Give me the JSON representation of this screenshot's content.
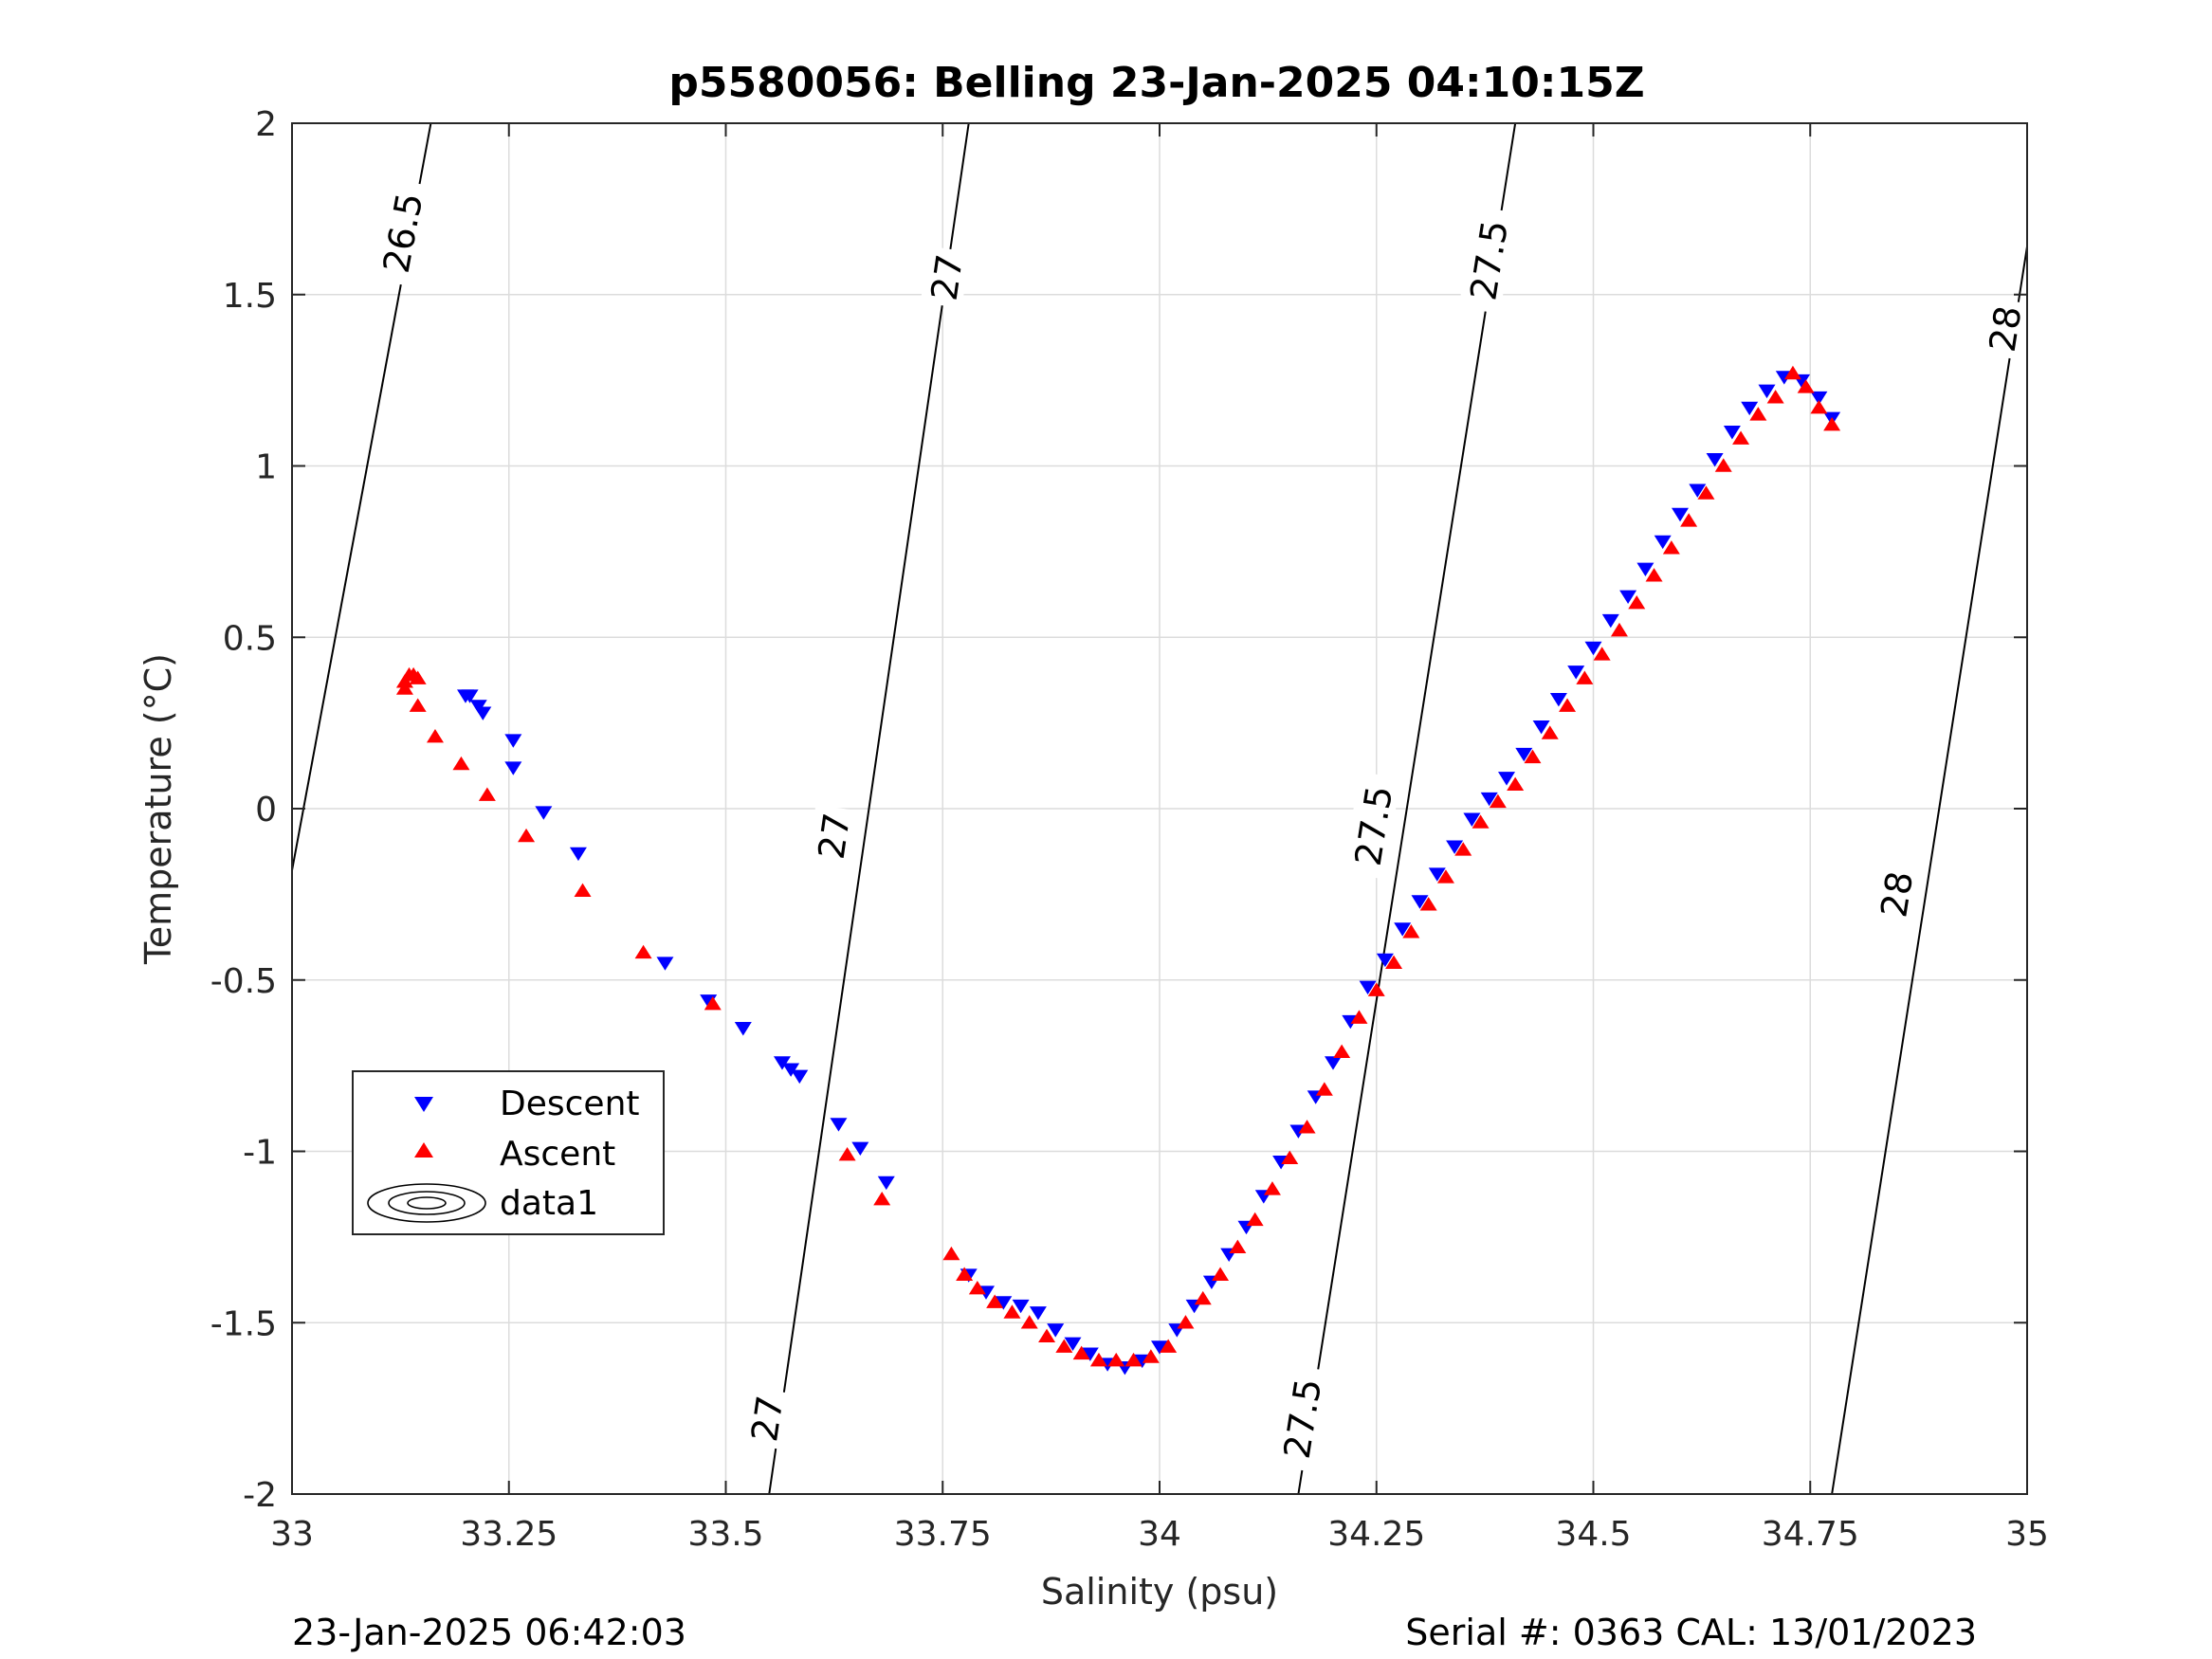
{
  "chart_data": {
    "type": "scatter",
    "title": "p5580056: Belling 23-Jan-2025 04:10:15Z",
    "xlabel": "Salinity (psu)",
    "ylabel": "Temperature (°C)",
    "xlim": [
      33,
      35
    ],
    "ylim": [
      -2,
      2
    ],
    "x_ticks": [
      "33",
      "33.25",
      "33.5",
      "33.75",
      "34",
      "34.25",
      "34.5",
      "34.75",
      "35"
    ],
    "y_ticks": [
      "2",
      "1.5",
      "1",
      "0.5",
      "0",
      "-0.5",
      "-1",
      "-1.5",
      "-2"
    ],
    "grid": true,
    "legend_position": "lower-left",
    "legend": [
      "Descent",
      "Ascent",
      "data1"
    ],
    "series": [
      {
        "name": "Descent",
        "marker": "triangle-down",
        "color": "#0000ff",
        "points": [
          [
            33.2,
            0.33
          ],
          [
            33.205,
            0.33
          ],
          [
            33.215,
            0.3
          ],
          [
            33.22,
            0.28
          ],
          [
            33.255,
            0.2
          ],
          [
            33.255,
            0.12
          ],
          [
            33.29,
            -0.01
          ],
          [
            33.33,
            -0.13
          ],
          [
            33.43,
            -0.45
          ],
          [
            33.48,
            -0.56
          ],
          [
            33.52,
            -0.64
          ],
          [
            33.565,
            -0.74
          ],
          [
            33.575,
            -0.76
          ],
          [
            33.585,
            -0.78
          ],
          [
            33.63,
            -0.92
          ],
          [
            33.655,
            -0.99
          ],
          [
            33.685,
            -1.09
          ],
          [
            33.78,
            -1.36
          ],
          [
            33.8,
            -1.41
          ],
          [
            33.82,
            -1.44
          ],
          [
            33.84,
            -1.45
          ],
          [
            33.86,
            -1.47
          ],
          [
            33.88,
            -1.52
          ],
          [
            33.9,
            -1.56
          ],
          [
            33.92,
            -1.59
          ],
          [
            33.94,
            -1.62
          ],
          [
            33.96,
            -1.63
          ],
          [
            33.98,
            -1.61
          ],
          [
            34.0,
            -1.57
          ],
          [
            34.02,
            -1.52
          ],
          [
            34.04,
            -1.45
          ],
          [
            34.06,
            -1.38
          ],
          [
            34.08,
            -1.3
          ],
          [
            34.1,
            -1.22
          ],
          [
            34.12,
            -1.13
          ],
          [
            34.14,
            -1.03
          ],
          [
            34.16,
            -0.94
          ],
          [
            34.18,
            -0.84
          ],
          [
            34.2,
            -0.74
          ],
          [
            34.22,
            -0.62
          ],
          [
            34.24,
            -0.52
          ],
          [
            34.26,
            -0.44
          ],
          [
            34.28,
            -0.35
          ],
          [
            34.3,
            -0.27
          ],
          [
            34.32,
            -0.19
          ],
          [
            34.34,
            -0.11
          ],
          [
            34.36,
            -0.03
          ],
          [
            34.38,
            0.03
          ],
          [
            34.4,
            0.09
          ],
          [
            34.42,
            0.16
          ],
          [
            34.44,
            0.24
          ],
          [
            34.46,
            0.32
          ],
          [
            34.48,
            0.4
          ],
          [
            34.5,
            0.47
          ],
          [
            34.52,
            0.55
          ],
          [
            34.54,
            0.62
          ],
          [
            34.56,
            0.7
          ],
          [
            34.58,
            0.78
          ],
          [
            34.6,
            0.86
          ],
          [
            34.62,
            0.93
          ],
          [
            34.64,
            1.02
          ],
          [
            34.66,
            1.1
          ],
          [
            34.68,
            1.17
          ],
          [
            34.7,
            1.22
          ],
          [
            34.72,
            1.26
          ],
          [
            34.74,
            1.25
          ],
          [
            34.76,
            1.2
          ],
          [
            34.775,
            1.14
          ]
        ]
      },
      {
        "name": "Ascent",
        "marker": "triangle-up",
        "color": "#ff0000",
        "points": [
          [
            33.13,
            0.37
          ],
          [
            33.135,
            0.39
          ],
          [
            33.14,
            0.39
          ],
          [
            33.145,
            0.38
          ],
          [
            33.13,
            0.35
          ],
          [
            33.145,
            0.3
          ],
          [
            33.165,
            0.21
          ],
          [
            33.195,
            0.13
          ],
          [
            33.225,
            0.04
          ],
          [
            33.27,
            -0.08
          ],
          [
            33.335,
            -0.24
          ],
          [
            33.405,
            -0.42
          ],
          [
            33.485,
            -0.57
          ],
          [
            33.64,
            -1.01
          ],
          [
            33.68,
            -1.14
          ],
          [
            33.76,
            -1.3
          ],
          [
            33.775,
            -1.36
          ],
          [
            33.79,
            -1.4
          ],
          [
            33.81,
            -1.44
          ],
          [
            33.83,
            -1.47
          ],
          [
            33.85,
            -1.5
          ],
          [
            33.87,
            -1.54
          ],
          [
            33.89,
            -1.57
          ],
          [
            33.91,
            -1.59
          ],
          [
            33.93,
            -1.61
          ],
          [
            33.95,
            -1.61
          ],
          [
            33.97,
            -1.61
          ],
          [
            33.99,
            -1.6
          ],
          [
            34.01,
            -1.57
          ],
          [
            34.03,
            -1.5
          ],
          [
            34.05,
            -1.43
          ],
          [
            34.07,
            -1.36
          ],
          [
            34.09,
            -1.28
          ],
          [
            34.11,
            -1.2
          ],
          [
            34.13,
            -1.11
          ],
          [
            34.15,
            -1.02
          ],
          [
            34.17,
            -0.93
          ],
          [
            34.19,
            -0.82
          ],
          [
            34.21,
            -0.71
          ],
          [
            34.23,
            -0.61
          ],
          [
            34.25,
            -0.53
          ],
          [
            34.27,
            -0.45
          ],
          [
            34.29,
            -0.36
          ],
          [
            34.31,
            -0.28
          ],
          [
            34.33,
            -0.2
          ],
          [
            34.35,
            -0.12
          ],
          [
            34.37,
            -0.04
          ],
          [
            34.39,
            0.02
          ],
          [
            34.41,
            0.07
          ],
          [
            34.43,
            0.15
          ],
          [
            34.45,
            0.22
          ],
          [
            34.47,
            0.3
          ],
          [
            34.49,
            0.38
          ],
          [
            34.51,
            0.45
          ],
          [
            34.53,
            0.52
          ],
          [
            34.55,
            0.6
          ],
          [
            34.57,
            0.68
          ],
          [
            34.59,
            0.76
          ],
          [
            34.61,
            0.84
          ],
          [
            34.63,
            0.92
          ],
          [
            34.65,
            1.0
          ],
          [
            34.67,
            1.08
          ],
          [
            34.69,
            1.15
          ],
          [
            34.71,
            1.2
          ],
          [
            34.73,
            1.27
          ],
          [
            34.745,
            1.23
          ],
          [
            34.76,
            1.17
          ],
          [
            34.775,
            1.12
          ]
        ]
      }
    ],
    "isopycnal_labels": [
      "26.5",
      "27",
      "27",
      "27",
      "27.5",
      "27.5",
      "27.5",
      "28",
      "28"
    ],
    "isopycnals": [
      {
        "line": [
          [
            33.0,
            -0.18
          ],
          [
            33.16,
            2.0
          ]
        ],
        "labels": [
          {
            "text": "26.5",
            "at": [
              33.128,
              1.68
            ]
          }
        ]
      },
      {
        "line": [
          [
            33.55,
            -2.0
          ],
          [
            33.78,
            2.0
          ]
        ],
        "labels": [
          {
            "text": "27",
            "at": [
              33.548,
              -1.78
            ]
          },
          {
            "text": "27",
            "at": [
              33.625,
              -0.08
            ]
          },
          {
            "text": "27",
            "at": [
              33.755,
              1.55
            ]
          }
        ]
      },
      {
        "line": [
          [
            34.16,
            -2.0
          ],
          [
            34.41,
            2.0
          ]
        ],
        "labels": [
          {
            "text": "27.5",
            "at": [
              34.165,
              -1.78
            ]
          },
          {
            "text": "27.5",
            "at": [
              34.247,
              -0.05
            ]
          },
          {
            "text": "27.5",
            "at": [
              34.38,
              1.6
            ]
          }
        ]
      },
      {
        "line": [
          [
            34.775,
            -2.0
          ],
          [
            35.0,
            1.64
          ]
        ],
        "labels": [
          {
            "text": "28",
            "at": [
              34.85,
              -0.25
            ]
          },
          {
            "text": "28",
            "at": [
              34.975,
              1.4
            ]
          }
        ]
      }
    ]
  },
  "footer": {
    "left": "23-Jan-2025 06:42:03",
    "right": "Serial #: 0363  CAL: 13/01/2023"
  }
}
